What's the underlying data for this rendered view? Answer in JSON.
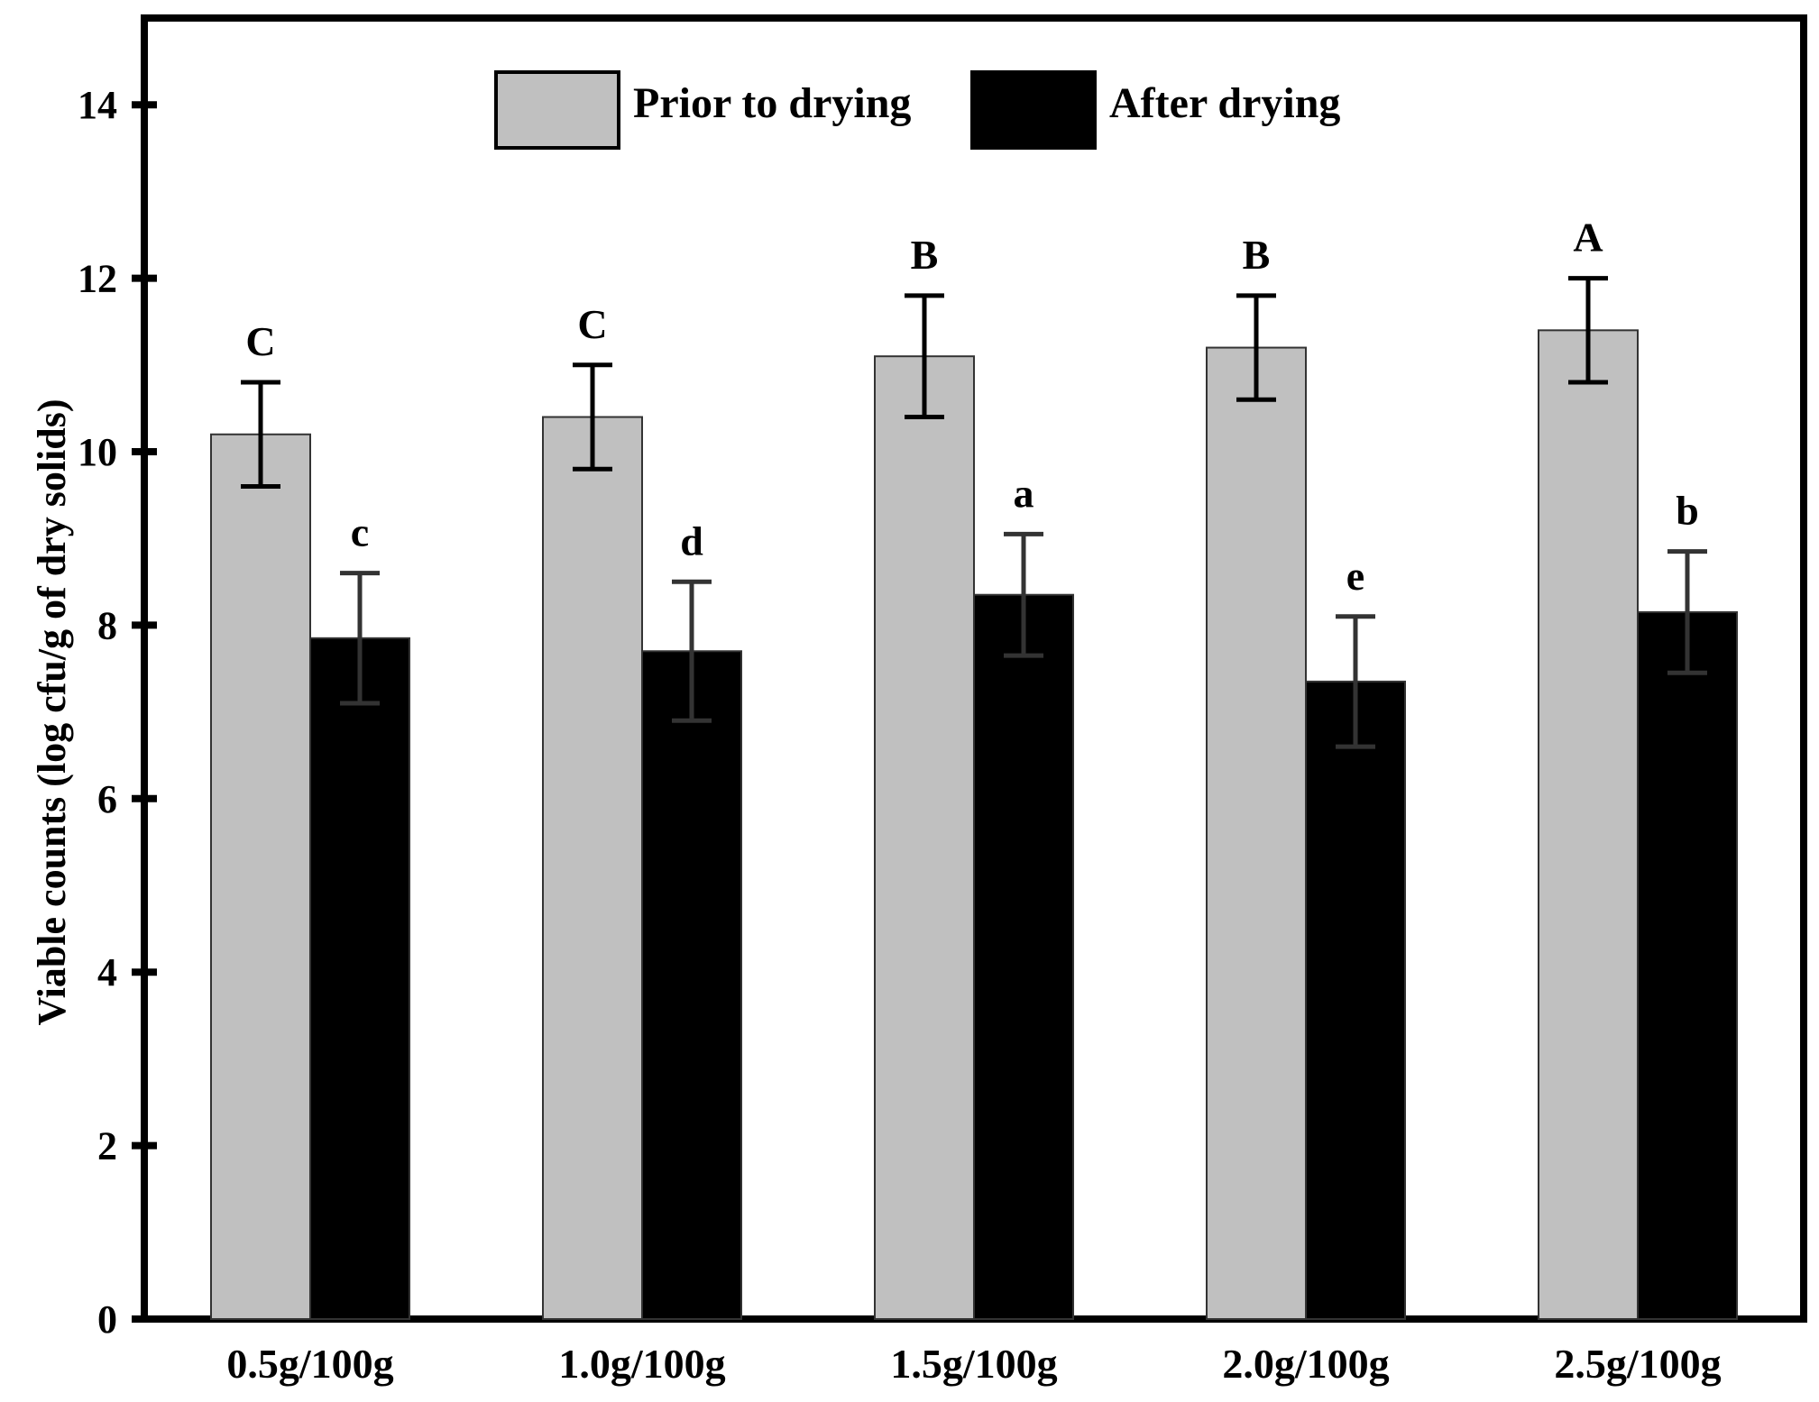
{
  "chart_data": {
    "type": "bar",
    "title": "",
    "xlabel": "",
    "ylabel": "Viable counts (log cfu/g of dry solids)",
    "ylim": [
      0,
      15
    ],
    "yticks": [
      0,
      2,
      4,
      6,
      8,
      10,
      12,
      14
    ],
    "grid": false,
    "legend_position": "top-center",
    "categories": [
      "0.5g/100g",
      "1.0g/100g",
      "1.5g/100g",
      "2.0g/100g",
      "2.5g/100g"
    ],
    "series": [
      {
        "name": "Prior to drying",
        "color": "#c0c0c0",
        "values": [
          10.2,
          10.4,
          11.1,
          11.2,
          11.4
        ],
        "errors": [
          0.6,
          0.6,
          0.7,
          0.6,
          0.6
        ],
        "labels": [
          "C",
          "C",
          "B",
          "B",
          "A"
        ]
      },
      {
        "name": "After drying",
        "color": "#000000",
        "values": [
          7.85,
          7.7,
          8.35,
          7.35,
          8.15
        ],
        "errors": [
          0.75,
          0.8,
          0.7,
          0.75,
          0.7
        ],
        "labels": [
          "c",
          "d",
          "a",
          "e",
          "b"
        ]
      }
    ]
  }
}
